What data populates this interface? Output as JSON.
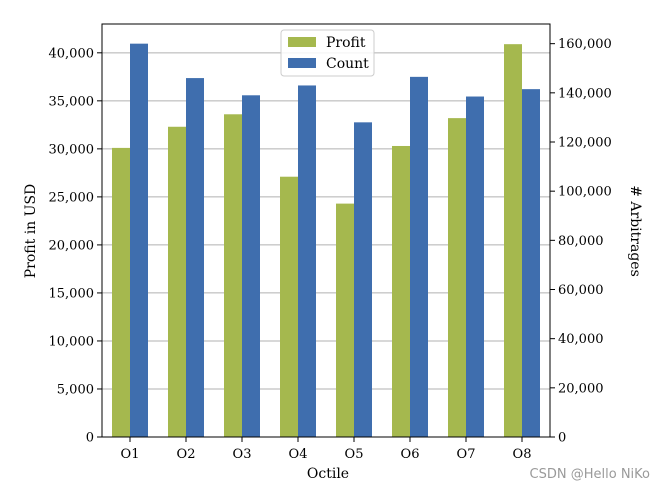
{
  "colors": {
    "profit": "#a5b84e",
    "count": "#3f6eae",
    "grid": "#b0b0b0",
    "axis": "#000000"
  },
  "watermark": "CSDN @Hello NiKo",
  "chart_data": {
    "type": "bar",
    "categories": [
      "O1",
      "O2",
      "O3",
      "O4",
      "O5",
      "O6",
      "O7",
      "O8"
    ],
    "xlabel": "Octile",
    "ylabel_left": "Profit in USD",
    "ylabel_right": "# Arbitrages",
    "ylim_left": [
      0,
      43000
    ],
    "ylim_right": [
      0,
      168000
    ],
    "yticks_left": [
      "0",
      "5,000",
      "10,000",
      "15,000",
      "20,000",
      "25,000",
      "30,000",
      "35,000",
      "40,000"
    ],
    "yticks_left_values": [
      0,
      5000,
      10000,
      15000,
      20000,
      25000,
      30000,
      35000,
      40000
    ],
    "yticks_right": [
      "0",
      "20,000",
      "40,000",
      "60,000",
      "80,000",
      "100,000",
      "120,000",
      "140,000",
      "160,000"
    ],
    "yticks_right_values": [
      0,
      20000,
      40000,
      60000,
      80000,
      100000,
      120000,
      140000,
      160000
    ],
    "grid": true,
    "legend_position": "top-center",
    "series": [
      {
        "name": "Profit",
        "axis": "left",
        "values": [
          30100,
          32300,
          33600,
          27100,
          24300,
          30300,
          33200,
          40900
        ]
      },
      {
        "name": "Count",
        "axis": "right",
        "values": [
          160000,
          146000,
          139000,
          143000,
          128000,
          146500,
          138500,
          141500
        ]
      }
    ]
  }
}
